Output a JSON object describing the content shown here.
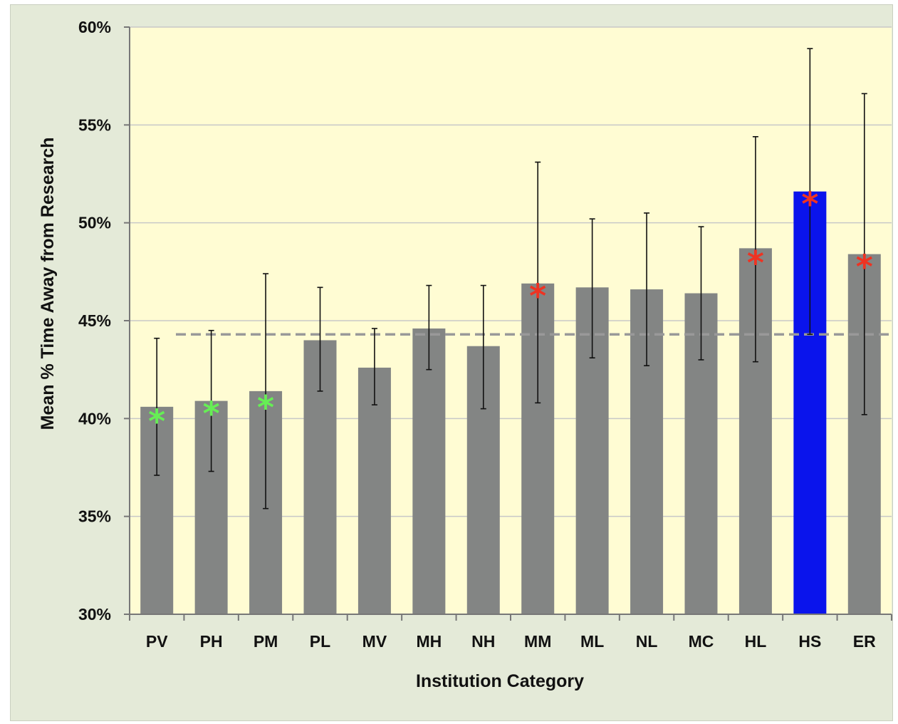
{
  "chart_data": {
    "type": "bar",
    "title": "",
    "xlabel": "Institution Category",
    "ylabel": "Mean % Time Away from Research",
    "ylim": [
      30,
      60
    ],
    "yticks": [
      30,
      35,
      40,
      45,
      50,
      55,
      60
    ],
    "ytick_labels": [
      "30%",
      "35%",
      "40%",
      "45%",
      "50%",
      "55%",
      "60%"
    ],
    "categories": [
      "PV",
      "PH",
      "PM",
      "PL",
      "MV",
      "MH",
      "NH",
      "MM",
      "ML",
      "NL",
      "MC",
      "HL",
      "HS",
      "ER"
    ],
    "values": [
      40.6,
      40.9,
      41.4,
      44.0,
      42.6,
      44.6,
      43.7,
      46.9,
      46.7,
      46.6,
      46.4,
      48.7,
      51.6,
      48.4
    ],
    "error_low": [
      37.1,
      37.3,
      35.4,
      41.4,
      40.7,
      42.5,
      40.5,
      40.8,
      43.1,
      42.7,
      43.0,
      42.9,
      44.3,
      40.2
    ],
    "error_high": [
      44.1,
      44.5,
      47.4,
      46.7,
      44.6,
      46.8,
      46.8,
      53.1,
      50.2,
      50.5,
      49.8,
      54.4,
      58.9,
      56.6
    ],
    "bar_colors": [
      "#838584",
      "#838584",
      "#838584",
      "#838584",
      "#838584",
      "#838584",
      "#838584",
      "#838584",
      "#838584",
      "#838584",
      "#838584",
      "#838584",
      "#0a14ec",
      "#838584"
    ],
    "markers": [
      "*",
      "*",
      "*",
      "",
      "",
      "",
      "",
      "*",
      "",
      "",
      "",
      "*",
      "*",
      "*"
    ],
    "marker_colors": [
      "#66ee55",
      "#66ee55",
      "#66ee55",
      "",
      "",
      "",
      "",
      "#ee3322",
      "",
      "",
      "",
      "#ee3322",
      "#ee3322",
      "#ee3322"
    ],
    "marker_values": [
      40.0,
      40.4,
      40.7,
      null,
      null,
      null,
      null,
      46.4,
      null,
      null,
      null,
      48.1,
      51.1,
      47.9
    ],
    "reference_line": 44.3,
    "grid": true,
    "legend": false,
    "plot_background": "#fffcd3",
    "grid_color": "#c8c8c8",
    "reference_line_color": "#999999"
  }
}
